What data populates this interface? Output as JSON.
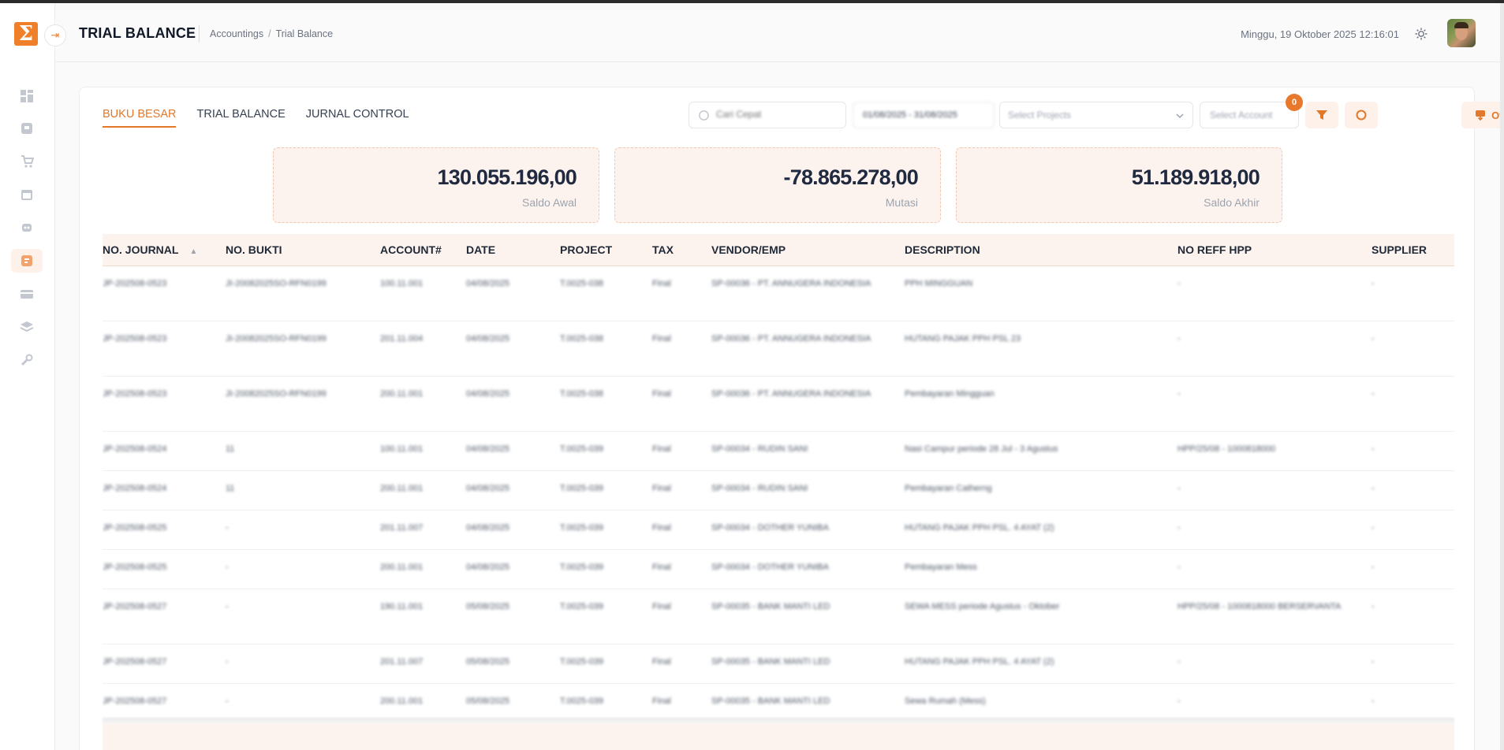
{
  "sidebar": {
    "logo_glyph": "Σ",
    "collapse_glyph": "⇥",
    "items": [
      {
        "icon": "dashboard-icon",
        "active": false
      },
      {
        "icon": "bank-icon",
        "active": false
      },
      {
        "icon": "cart-icon",
        "active": false
      },
      {
        "icon": "calendar-icon",
        "active": false
      },
      {
        "icon": "robot-icon",
        "active": false
      },
      {
        "icon": "accounting-icon",
        "active": true
      },
      {
        "icon": "card-icon",
        "active": false
      },
      {
        "icon": "layers-icon",
        "active": false
      },
      {
        "icon": "wrench-icon",
        "active": false
      }
    ]
  },
  "header": {
    "title": "TRIAL BALANCE",
    "breadcrumb": [
      "Accountings",
      "Trial Balance"
    ],
    "datetime": "Minggu, 19 Oktober 2025 12:16:01"
  },
  "tabs": [
    {
      "label": "BUKU BESAR",
      "active": true
    },
    {
      "label": "TRIAL BALANCE",
      "active": false
    },
    {
      "label": "JURNAL CONTROL",
      "active": false
    }
  ],
  "filters": {
    "search_placeholder": "Cari Cepat",
    "date_range": "01/08/2025 - 31/08/2025",
    "projects_placeholder": "Select Projects",
    "account_placeholder": "Select Account",
    "filter_badge": "0",
    "other_label": "Other"
  },
  "summary": [
    {
      "value": "130.055.196,00",
      "label": "Saldo Awal"
    },
    {
      "value": "-78.865.278,00",
      "label": "Mutasi"
    },
    {
      "value": "51.189.918,00",
      "label": "Saldo Akhir"
    }
  ],
  "table": {
    "columns": [
      "NO. JOURNAL",
      "NO. BUKTI",
      "ACCOUNT#",
      "DATE",
      "PROJECT",
      "TAX",
      "VENDOR/EMP",
      "DESCRIPTION",
      "NO REFF HPP",
      "SUPPLIER"
    ],
    "rows": [
      [
        "JP-202508-0523",
        "JI-20082025SO-RFN0199",
        "100.11.001",
        "04/08/2025",
        "T.0025-038",
        "Final",
        "SP-00036 - PT. ANNUGERA INDONESIA",
        "PPH MINGGUAN",
        "-",
        "-"
      ],
      [
        "JP-202508-0523",
        "JI-20082025SO-RFN0199",
        "201.11.004",
        "04/08/2025",
        "T.0025-038",
        "Final",
        "SP-00036 - PT. ANNUGERA INDONESIA",
        "HUTANG PAJAK PPH PSL 23",
        "-",
        "-"
      ],
      [
        "JP-202508-0523",
        "JI-20082025SO-RFN0199",
        "200.11.001",
        "04/08/2025",
        "T.0025-038",
        "Final",
        "SP-00036 - PT. ANNUGERA INDONESIA",
        "Pembayaran Mingguan",
        "-",
        "-"
      ],
      [
        "JP-202508-0524",
        "11",
        "100.11.001",
        "04/08/2025",
        "T.0025-039",
        "Final",
        "SP-00034 - RUDIN SANI",
        "Nasi Campur periode 28 Jul - 3 Agustus",
        "HPP/25/08 - 1000818000",
        "-"
      ],
      [
        "JP-202508-0524",
        "11",
        "200.11.001",
        "04/08/2025",
        "T.0025-039",
        "Final",
        "SP-00034 - RUDIN SANI",
        "Pembayaran Catherng",
        "-",
        "-"
      ],
      [
        "JP-202508-0525",
        "-",
        "201.11.007",
        "04/08/2025",
        "T.0025-039",
        "Final",
        "SP-00034 - DOTHER YUNIBA",
        "HUTANG PAJAK PPH PSL. 4 AYAT (2)",
        "-",
        "-"
      ],
      [
        "JP-202508-0525",
        "-",
        "200.11.001",
        "04/08/2025",
        "T.0025-039",
        "Final",
        "SP-00034 - DOTHER YUNIBA",
        "Pembayaran Mess",
        "-",
        "-"
      ],
      [
        "JP-202508-0527",
        "-",
        "190.11.001",
        "05/08/2025",
        "T.0025-039",
        "Final",
        "SP-00035 - BANK MANTI LED",
        "SEWA MESS periode Agustus - Oktober",
        "HPP/25/08 - 1000818000 BERSERVANTA",
        "-"
      ],
      [
        "JP-202508-0527",
        "-",
        "201.11.007",
        "05/08/2025",
        "T.0025-039",
        "Final",
        "SP-00035 - BANK MANTI LED",
        "HUTANG PAJAK PPH PSL. 4 AYAT (2)",
        "-",
        "-"
      ],
      [
        "JP-202508-0527",
        "-",
        "200.11.001",
        "05/08/2025",
        "T.0025-039",
        "Final",
        "SP-00035 - BANK MANTI LED",
        "Sewa Rumah (Mess)",
        "-",
        "-"
      ]
    ]
  }
}
